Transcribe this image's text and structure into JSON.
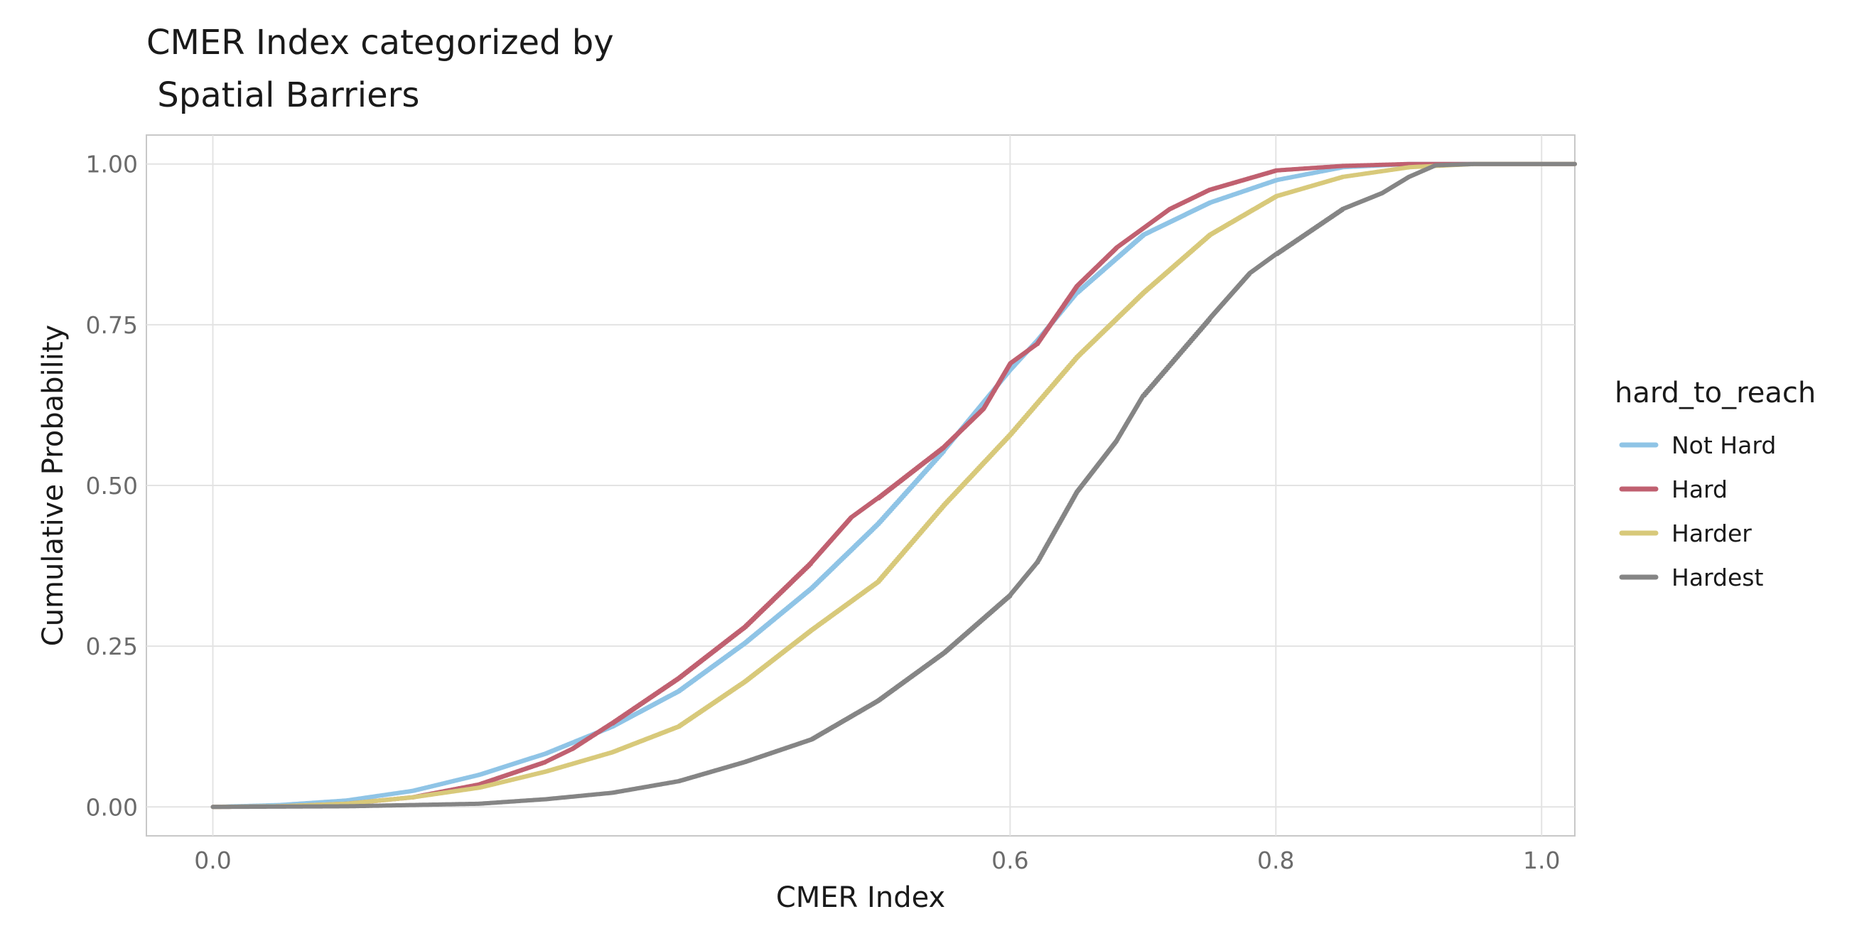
{
  "chart_data": {
    "type": "line",
    "title": [
      "CMER Index categorized by",
      " Spatial Barriers"
    ],
    "xlabel": "CMER Index",
    "ylabel": "Cumulative Probability",
    "xlim": [
      -0.05,
      1.025
    ],
    "ylim": [
      -0.045,
      1.045
    ],
    "x_ticks": [
      0.0,
      0.6,
      0.8,
      1.0
    ],
    "x_tick_labels": [
      "0.0",
      "0.6",
      "0.8",
      "1.0"
    ],
    "y_ticks": [
      0.0,
      0.25,
      0.5,
      0.75,
      1.0
    ],
    "y_tick_labels": [
      "0.00",
      "0.25",
      "0.50",
      "0.75",
      "1.00"
    ],
    "grid": true,
    "legend": {
      "title": "hard_to_reach",
      "position": "right"
    },
    "series": [
      {
        "name": "Not Hard",
        "color": "#8fc4e6",
        "x": [
          0.0,
          0.05,
          0.1,
          0.15,
          0.2,
          0.25,
          0.3,
          0.35,
          0.4,
          0.45,
          0.5,
          0.55,
          0.58,
          0.6,
          0.62,
          0.65,
          0.7,
          0.75,
          0.8,
          0.85,
          0.9,
          0.95,
          1.025
        ],
        "y": [
          0.0,
          0.003,
          0.01,
          0.025,
          0.05,
          0.083,
          0.125,
          0.18,
          0.255,
          0.34,
          0.44,
          0.555,
          0.63,
          0.68,
          0.725,
          0.8,
          0.89,
          0.94,
          0.975,
          0.995,
          1.0,
          1.0,
          1.0
        ]
      },
      {
        "name": "Hard",
        "color": "#c06070",
        "x": [
          0.0,
          0.05,
          0.1,
          0.15,
          0.2,
          0.25,
          0.27,
          0.3,
          0.35,
          0.4,
          0.45,
          0.48,
          0.5,
          0.55,
          0.58,
          0.6,
          0.62,
          0.65,
          0.68,
          0.7,
          0.72,
          0.75,
          0.8,
          0.85,
          0.9,
          0.95,
          1.025
        ],
        "y": [
          0.0,
          0.001,
          0.005,
          0.015,
          0.035,
          0.07,
          0.09,
          0.13,
          0.2,
          0.28,
          0.38,
          0.45,
          0.48,
          0.56,
          0.62,
          0.69,
          0.72,
          0.81,
          0.87,
          0.9,
          0.93,
          0.96,
          0.99,
          0.997,
          1.0,
          1.0,
          1.0
        ]
      },
      {
        "name": "Harder",
        "color": "#d8c97a",
        "x": [
          0.0,
          0.05,
          0.1,
          0.15,
          0.2,
          0.25,
          0.3,
          0.35,
          0.4,
          0.45,
          0.5,
          0.55,
          0.6,
          0.65,
          0.7,
          0.75,
          0.8,
          0.85,
          0.9,
          0.95,
          1.025
        ],
        "y": [
          0.0,
          0.001,
          0.005,
          0.015,
          0.03,
          0.055,
          0.085,
          0.125,
          0.195,
          0.275,
          0.35,
          0.47,
          0.58,
          0.7,
          0.8,
          0.89,
          0.95,
          0.98,
          0.995,
          1.0,
          1.0
        ]
      },
      {
        "name": "Hardest",
        "color": "#858585",
        "x": [
          0.0,
          0.1,
          0.2,
          0.25,
          0.3,
          0.35,
          0.4,
          0.45,
          0.5,
          0.55,
          0.6,
          0.62,
          0.65,
          0.68,
          0.7,
          0.75,
          0.78,
          0.8,
          0.85,
          0.88,
          0.9,
          0.92,
          0.95,
          1.025
        ],
        "y": [
          0.0,
          0.001,
          0.005,
          0.012,
          0.022,
          0.04,
          0.07,
          0.105,
          0.165,
          0.24,
          0.33,
          0.38,
          0.49,
          0.57,
          0.64,
          0.76,
          0.83,
          0.86,
          0.93,
          0.955,
          0.98,
          0.998,
          1.0,
          1.0
        ]
      }
    ]
  }
}
